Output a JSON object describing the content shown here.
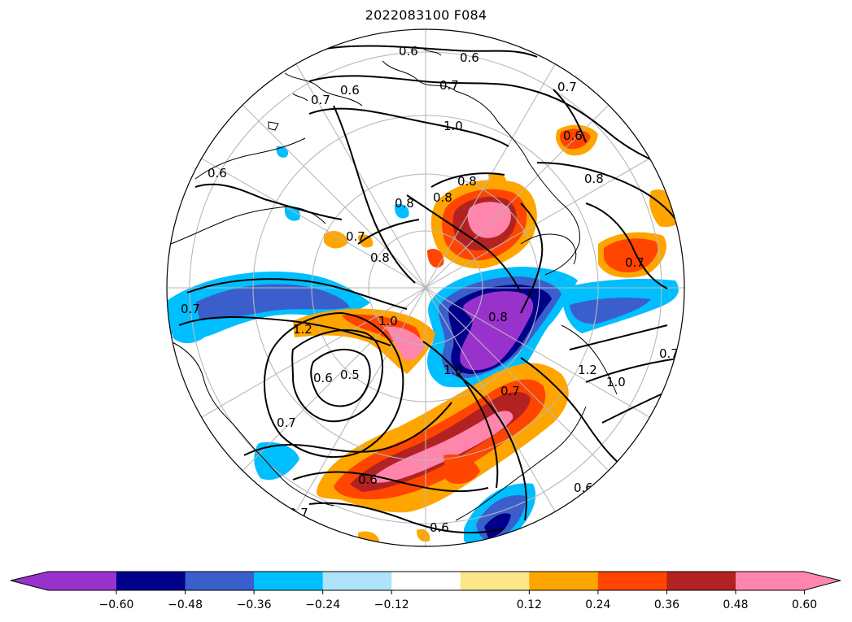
{
  "title": "2022083100 F084",
  "map": {
    "projection": "north-polar-stereographic",
    "coastline_color": "#000000",
    "gridline_color": "#b8b8b8",
    "contour_color": "#000000",
    "contour_labels": [
      "0.6",
      "0.6",
      "0.7",
      "0.7",
      "0.6",
      "1.0",
      "0.7",
      "0.6",
      "0.8",
      "0.8",
      "0.8",
      "0.8",
      "0.7",
      "0.8",
      "1.0",
      "0.7",
      "0.6",
      "0.5",
      "0.7",
      "0.6",
      "0.7",
      "0.6",
      "1.2",
      "1.0",
      "0.8",
      "0.7",
      "0.7",
      "1.2",
      "1.0",
      "0.6",
      "0.7",
      "0.6"
    ]
  },
  "colorbar": {
    "tick_labels": [
      "−0.60",
      "−0.48",
      "−0.36",
      "−0.24",
      "−0.12",
      "0.12",
      "0.24",
      "0.36",
      "0.48",
      "0.60"
    ],
    "bins": [
      {
        "color": "#9932cc"
      },
      {
        "color": "#00008b"
      },
      {
        "color": "#3a5fcd"
      },
      {
        "color": "#00bfff"
      },
      {
        "color": "#aee3f9"
      },
      {
        "color": "#ffffff"
      },
      {
        "color": "#fde68a"
      },
      {
        "color": "#ffa500"
      },
      {
        "color": "#ff4500"
      },
      {
        "color": "#b22222"
      },
      {
        "color": "#ff85ad"
      }
    ],
    "extend": "both"
  }
}
